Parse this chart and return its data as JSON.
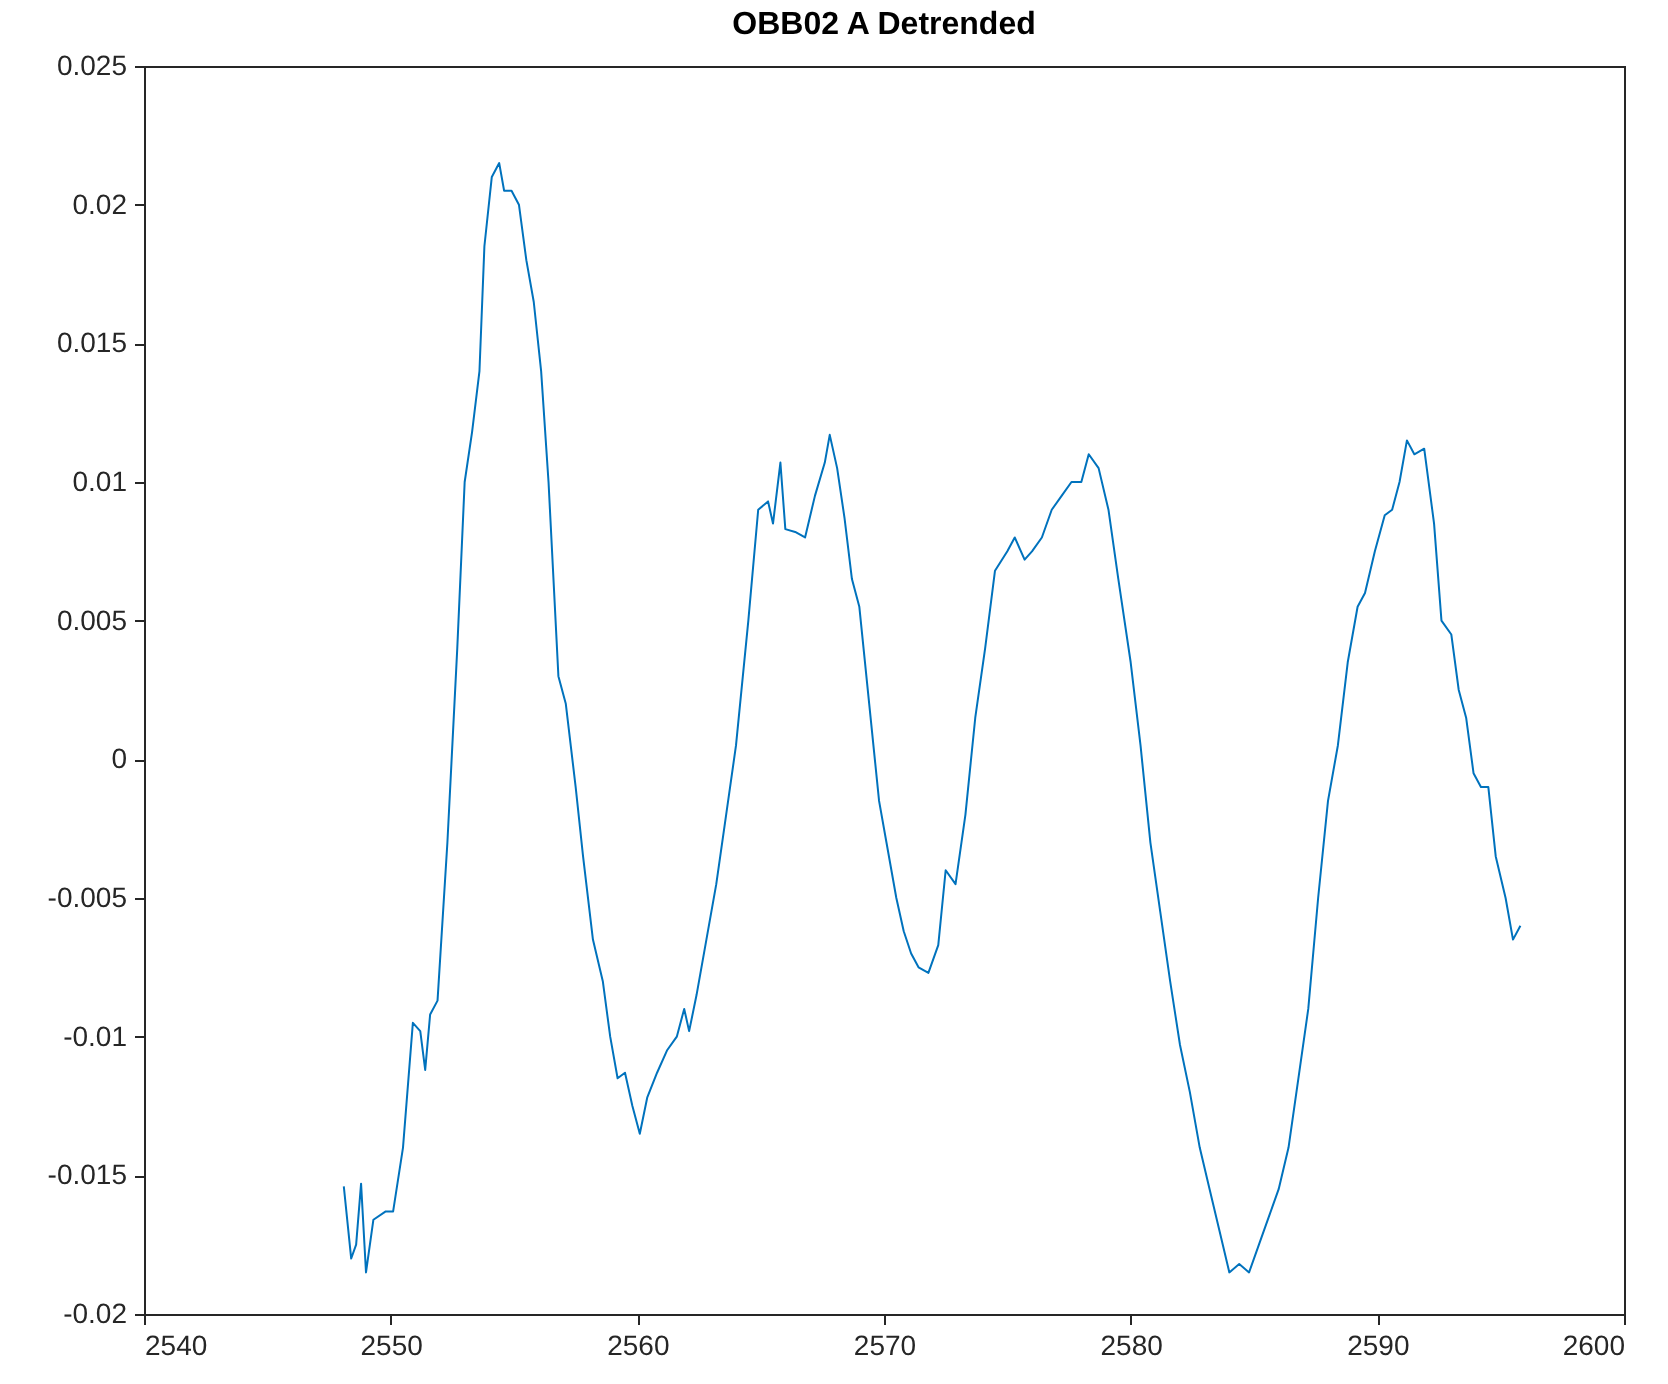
{
  "chart_data": {
    "type": "line",
    "title": "OBB02 A Detrended",
    "xlim": [
      2540,
      2600
    ],
    "xticks": [
      2540,
      2550,
      2560,
      2570,
      2580,
      2590,
      2600
    ],
    "ylim": [
      -0.02,
      0.025
    ],
    "yticks": [
      -0.02,
      -0.015,
      -0.01,
      -0.005,
      0,
      0.005,
      0.01,
      0.015,
      0.02,
      0.025
    ],
    "grid": false,
    "marker": "none",
    "line_style": "solid",
    "x": [
      2548.1,
      2548.4,
      2548.6,
      2548.8,
      2549.0,
      2549.3,
      2549.8,
      2550.1,
      2550.5,
      2550.9,
      2551.2,
      2551.4,
      2551.6,
      2551.9,
      2552.3,
      2552.7,
      2553.0,
      2553.3,
      2553.6,
      2553.8,
      2554.1,
      2554.4,
      2554.6,
      2554.9,
      2555.2,
      2555.5,
      2555.8,
      2556.1,
      2556.4,
      2556.8,
      2557.1,
      2557.5,
      2557.8,
      2558.2,
      2558.6,
      2558.9,
      2559.2,
      2559.5,
      2559.8,
      2560.1,
      2560.4,
      2560.8,
      2561.2,
      2561.6,
      2561.9,
      2562.1,
      2562.4,
      2562.8,
      2563.2,
      2563.6,
      2564.0,
      2564.5,
      2564.9,
      2565.3,
      2565.5,
      2565.8,
      2566.0,
      2566.4,
      2566.8,
      2567.2,
      2567.6,
      2567.8,
      2568.1,
      2568.4,
      2568.7,
      2569.0,
      2569.4,
      2569.8,
      2570.1,
      2570.5,
      2570.8,
      2571.1,
      2571.4,
      2571.8,
      2572.2,
      2572.5,
      2572.9,
      2573.3,
      2573.7,
      2574.1,
      2574.5,
      2575.0,
      2575.3,
      2575.7,
      2576.0,
      2576.4,
      2576.8,
      2577.2,
      2577.6,
      2578.0,
      2578.3,
      2578.7,
      2579.1,
      2579.5,
      2580.0,
      2580.4,
      2580.8,
      2581.2,
      2581.6,
      2582.0,
      2582.4,
      2582.8,
      2583.2,
      2583.6,
      2584.0,
      2584.4,
      2584.8,
      2585.2,
      2585.6,
      2586.0,
      2586.4,
      2586.8,
      2587.2,
      2587.6,
      2588.0,
      2588.4,
      2588.8,
      2589.2,
      2589.5,
      2589.9,
      2590.3,
      2590.6,
      2590.9,
      2591.2,
      2591.5,
      2591.9,
      2592.3,
      2592.6,
      2593.0,
      2593.3,
      2593.6,
      2593.9,
      2594.2,
      2594.5,
      2594.8,
      2595.2,
      2595.5,
      2595.8
    ],
    "series": [
      {
        "color": "#0072bd",
        "values": [
          -0.0154,
          -0.018,
          -0.0175,
          -0.0153,
          -0.0185,
          -0.0166,
          -0.0163,
          -0.0163,
          -0.014,
          -0.0095,
          -0.0098,
          -0.0112,
          -0.0092,
          -0.0087,
          -0.003,
          0.004,
          0.01,
          0.0118,
          0.014,
          0.0185,
          0.021,
          0.0215,
          0.0205,
          0.0205,
          0.02,
          0.018,
          0.0165,
          0.014,
          0.01,
          0.003,
          0.002,
          -0.001,
          -0.0035,
          -0.0065,
          -0.008,
          -0.01,
          -0.0115,
          -0.0113,
          -0.0125,
          -0.0135,
          -0.0122,
          -0.0113,
          -0.0105,
          -0.01,
          -0.009,
          -0.0098,
          -0.0085,
          -0.0065,
          -0.0045,
          -0.002,
          0.0005,
          0.005,
          0.009,
          0.0093,
          0.0085,
          0.0107,
          0.0083,
          0.0082,
          0.008,
          0.0095,
          0.0107,
          0.0117,
          0.0105,
          0.0087,
          0.0065,
          0.0055,
          0.002,
          -0.0015,
          -0.003,
          -0.005,
          -0.0062,
          -0.007,
          -0.0075,
          -0.0077,
          -0.0067,
          -0.004,
          -0.0045,
          -0.002,
          0.0015,
          0.004,
          0.0068,
          0.0075,
          0.008,
          0.0072,
          0.0075,
          0.008,
          0.009,
          0.0095,
          0.01,
          0.01,
          0.011,
          0.0105,
          0.009,
          0.0065,
          0.0035,
          0.0005,
          -0.003,
          -0.0055,
          -0.008,
          -0.0103,
          -0.012,
          -0.014,
          -0.0155,
          -0.017,
          -0.0185,
          -0.0182,
          -0.0185,
          -0.0175,
          -0.0165,
          -0.0155,
          -0.014,
          -0.0115,
          -0.009,
          -0.005,
          -0.0015,
          0.0005,
          0.0035,
          0.0055,
          0.006,
          0.0075,
          0.0088,
          0.009,
          0.01,
          0.0115,
          0.011,
          0.0112,
          0.0085,
          0.005,
          0.0045,
          0.0025,
          0.0015,
          -0.0005,
          -0.001,
          -0.001,
          -0.0035,
          -0.005,
          -0.0065,
          -0.006
        ]
      }
    ]
  }
}
